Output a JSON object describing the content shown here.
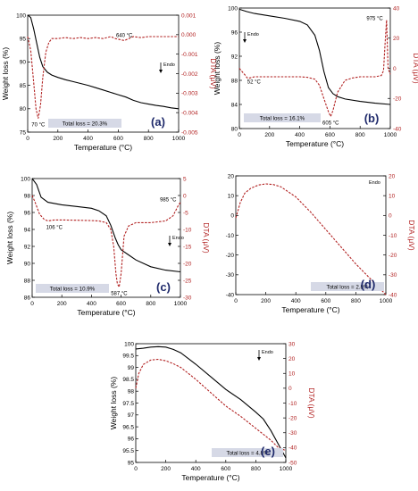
{
  "figure": {
    "panels": [
      {
        "id": "a",
        "panel_label": "(a)",
        "y_left_label": "Weight loss (%)",
        "y_right_label": "DTA (μV)",
        "x_label": "Temperature (°C)",
        "y_left_ticks": [
          "75",
          "80",
          "85",
          "90",
          "95",
          "100"
        ],
        "y_right_ticks": [
          "-0.005",
          "-0.004",
          "-0.003",
          "-0.002",
          "-0.001",
          "0.000",
          "0.001"
        ],
        "x_ticks": [
          "0",
          "200",
          "400",
          "600",
          "800",
          "1000"
        ],
        "total_loss": "Total loss = 20.3%",
        "endo_label": "Endo",
        "annotations": [
          {
            "text": "70 °C",
            "x": 70,
            "y_right": -0.0043
          },
          {
            "text": "640 °C",
            "x": 640,
            "y_right": -0.0003
          }
        ]
      },
      {
        "id": "b",
        "panel_label": "(b)",
        "y_left_label": "Weight loss (%)",
        "y_right_label": "DTA (μV)",
        "x_label": "Temperature (°C)",
        "y_left_ticks": [
          "80",
          "84",
          "88",
          "92",
          "96",
          "100"
        ],
        "y_right_ticks": [
          "-40",
          "-20",
          "0",
          "20",
          "40"
        ],
        "x_ticks": [
          "0",
          "200",
          "400",
          "600",
          "800",
          "1000"
        ],
        "total_loss": "Total loss = 16.1%",
        "endo_label": "Endo",
        "annotations": [
          {
            "text": "52 °C",
            "x": 52,
            "y_right": -8
          },
          {
            "text": "605 °C",
            "x": 605,
            "y_right": -40
          },
          {
            "text": "975 °C",
            "x": 975,
            "y_right": 40
          }
        ]
      },
      {
        "id": "c",
        "panel_label": "(c)",
        "y_left_label": "Weight loss (%)",
        "y_right_label": "DTA (μV)",
        "x_label": "Temperature (°C)",
        "y_left_ticks": [
          "86",
          "88",
          "90",
          "92",
          "94",
          "96",
          "98",
          "100"
        ],
        "y_right_ticks": [
          "-30",
          "-25",
          "-20",
          "-15",
          "-10",
          "-5",
          "0",
          "5"
        ],
        "x_ticks": [
          "0",
          "200",
          "400",
          "600",
          "800",
          "1000"
        ],
        "total_loss": "Total loss = 10.9%",
        "endo_label": "Endo",
        "annotations": [
          {
            "text": "106 °C",
            "x": 106,
            "y_right": -7.5
          },
          {
            "text": "587 °C",
            "x": 587,
            "y_right": -27
          },
          {
            "text": "985 °C",
            "x": 985,
            "y_right": -3
          }
        ]
      },
      {
        "id": "d",
        "panel_label": "(d)",
        "y_left_label": "",
        "y_right_label": "DTA (μV)",
        "x_label": "Temperature (°C)",
        "y_left_ticks": [
          "-40",
          "-30",
          "-20",
          "-10",
          "0",
          "10",
          "20"
        ],
        "y_right_ticks": [
          "-40",
          "-30",
          "-20",
          "-10",
          "0",
          "10",
          "20"
        ],
        "x_ticks": [
          "0",
          "200",
          "400",
          "600",
          "800",
          "1000"
        ],
        "total_loss": "Total loss = 2.8%",
        "endo_label": "Endo",
        "annotations": []
      },
      {
        "id": "e",
        "panel_label": "(e)",
        "y_left_label": "Weight loss (%)",
        "y_right_label": "DTA (μV)",
        "x_label": "Temperature (°C)",
        "y_left_ticks": [
          "95",
          "95.5",
          "96",
          "96.5",
          "97",
          "97.5",
          "98",
          "98.5",
          "99",
          "99.5",
          "100"
        ],
        "y_right_ticks": [
          "-50",
          "-40",
          "-30",
          "-20",
          "-10",
          "0",
          "10",
          "20",
          "30"
        ],
        "x_ticks": [
          "0",
          "200",
          "400",
          "600",
          "800",
          "1000"
        ],
        "total_loss": "Total loss = 4.8%",
        "endo_label": "Endo",
        "annotations": []
      }
    ]
  },
  "colors": {
    "tg": "#000000",
    "dta": "#b22222",
    "box": "#d6d9e6",
    "panel_label": "#1f2a6b",
    "right_axis": "#b22222"
  },
  "chart_data": [
    {
      "type": "line",
      "panel": "a",
      "xlim": [
        0,
        1000
      ],
      "ylim_left": [
        75,
        100
      ],
      "ylim_right": [
        -0.005,
        0.001
      ],
      "series": [
        {
          "axis": "left",
          "style": "solid",
          "x": [
            0,
            20,
            40,
            60,
            80,
            100,
            130,
            160,
            200,
            250,
            300,
            350,
            400,
            450,
            500,
            550,
            600,
            650,
            700,
            750,
            800,
            850,
            900,
            950,
            1000
          ],
          "values": [
            100,
            99.5,
            97,
            94,
            91,
            89,
            87.8,
            87.2,
            86.7,
            86.2,
            85.8,
            85.4,
            85,
            84.5,
            84,
            83.5,
            83,
            82.5,
            81.8,
            81.3,
            81,
            80.7,
            80.5,
            80.2,
            80
          ]
        },
        {
          "axis": "right",
          "style": "dashed",
          "x": [
            0,
            20,
            40,
            55,
            70,
            85,
            100,
            120,
            140,
            160,
            200,
            250,
            300,
            350,
            400,
            450,
            500,
            550,
            580,
            610,
            640,
            670,
            700,
            750,
            800,
            850,
            900,
            1000
          ],
          "values": [
            -0.0001,
            -0.0008,
            -0.0025,
            -0.0038,
            -0.0043,
            -0.0036,
            -0.0022,
            -0.0009,
            -0.0004,
            -0.0002,
            -0.0002,
            -0.00015,
            -0.0002,
            -0.00015,
            -0.0002,
            -0.00015,
            -0.0002,
            -0.0001,
            -0.0002,
            -0.00025,
            -0.0003,
            -0.0002,
            -0.0001,
            -0.00015,
            -0.0001,
            -0.0001,
            -0.0001,
            -0.0001
          ]
        }
      ]
    },
    {
      "type": "line",
      "panel": "b",
      "xlim": [
        0,
        1000
      ],
      "ylim_left": [
        80,
        100
      ],
      "ylim_right": [
        -50,
        50
      ],
      "series": [
        {
          "axis": "left",
          "style": "solid",
          "x": [
            0,
            50,
            100,
            200,
            300,
            400,
            450,
            500,
            530,
            560,
            590,
            620,
            650,
            700,
            800,
            900,
            1000
          ],
          "values": [
            99.8,
            99.4,
            99.1,
            98.7,
            98.3,
            97.8,
            97.2,
            95.5,
            93,
            89.5,
            86.8,
            85.8,
            85.3,
            84.9,
            84.5,
            84.2,
            84
          ]
        },
        {
          "axis": "right",
          "style": "dashed",
          "x": [
            0,
            20,
            40,
            52,
            70,
            100,
            200,
            300,
            400,
            450,
            500,
            530,
            560,
            590,
            605,
            620,
            650,
            700,
            750,
            800,
            900,
            940,
            955,
            965,
            975,
            985,
            1000
          ],
          "values": [
            0,
            -3,
            -6,
            -8,
            -8,
            -7,
            -7,
            -7,
            -7,
            -7.5,
            -9,
            -14,
            -25,
            -36,
            -40,
            -35,
            -20,
            -10,
            -8,
            -7,
            -7,
            -6,
            -2,
            20,
            40,
            0,
            -5
          ]
        }
      ]
    },
    {
      "type": "line",
      "panel": "c",
      "xlim": [
        0,
        1000
      ],
      "ylim_left": [
        86,
        100
      ],
      "ylim_right": [
        -30,
        5
      ],
      "series": [
        {
          "axis": "left",
          "style": "solid",
          "x": [
            0,
            30,
            60,
            106,
            200,
            300,
            400,
            450,
            500,
            530,
            560,
            580,
            600,
            650,
            700,
            800,
            900,
            1000
          ],
          "values": [
            100,
            99.3,
            97.8,
            97.2,
            96.9,
            96.7,
            96.5,
            96.2,
            95.6,
            94.5,
            93,
            92.2,
            91.6,
            91,
            90.4,
            89.6,
            89.2,
            89
          ]
        },
        {
          "axis": "right",
          "style": "dashed",
          "x": [
            0,
            20,
            50,
            80,
            106,
            150,
            200,
            300,
            400,
            450,
            500,
            530,
            550,
            565,
            575,
            587,
            600,
            620,
            650,
            700,
            800,
            900,
            950,
            985,
            1000
          ],
          "values": [
            0,
            -2,
            -5.5,
            -7,
            -7.5,
            -7.2,
            -7.2,
            -7.3,
            -7.4,
            -7.5,
            -8,
            -10,
            -15,
            -23,
            -26,
            -27,
            -23,
            -12,
            -9,
            -8,
            -8,
            -7.5,
            -6,
            -3,
            -2
          ]
        }
      ]
    },
    {
      "type": "line",
      "panel": "d",
      "xlim": [
        0,
        1000
      ],
      "ylim_left": [
        -40,
        22
      ],
      "ylim_right": [
        -40,
        22
      ],
      "series": [
        {
          "axis": "right",
          "style": "dashed",
          "x": [
            0,
            30,
            60,
            100,
            150,
            200,
            250,
            300,
            400,
            500,
            600,
            700,
            800,
            900,
            1000
          ],
          "values": [
            0,
            8,
            13,
            15.5,
            17.2,
            17.8,
            17.5,
            16.3,
            11,
            3,
            -6,
            -15,
            -24,
            -32,
            -40
          ]
        }
      ]
    },
    {
      "type": "line",
      "panel": "e",
      "xlim": [
        0,
        1000
      ],
      "ylim_left": [
        95,
        100.2
      ],
      "ylim_right": [
        -50,
        30
      ],
      "series": [
        {
          "axis": "left",
          "style": "solid",
          "x": [
            0,
            50,
            100,
            150,
            200,
            250,
            300,
            400,
            500,
            600,
            700,
            800,
            850,
            900,
            950,
            1000
          ],
          "values": [
            99.97,
            100,
            100.05,
            100.07,
            100.05,
            99.95,
            99.8,
            99.3,
            98.75,
            98.2,
            97.75,
            97.2,
            96.9,
            96.4,
            95.8,
            95.2
          ]
        },
        {
          "axis": "right",
          "style": "dashed",
          "x": [
            0,
            20,
            50,
            100,
            150,
            200,
            250,
            300,
            400,
            500,
            600,
            700,
            800,
            900,
            950,
            1000
          ],
          "values": [
            0,
            10,
            16,
            19,
            19.5,
            18.5,
            16.5,
            14,
            6,
            -3,
            -12,
            -19,
            -27,
            -35,
            -40,
            -42
          ]
        }
      ]
    }
  ]
}
